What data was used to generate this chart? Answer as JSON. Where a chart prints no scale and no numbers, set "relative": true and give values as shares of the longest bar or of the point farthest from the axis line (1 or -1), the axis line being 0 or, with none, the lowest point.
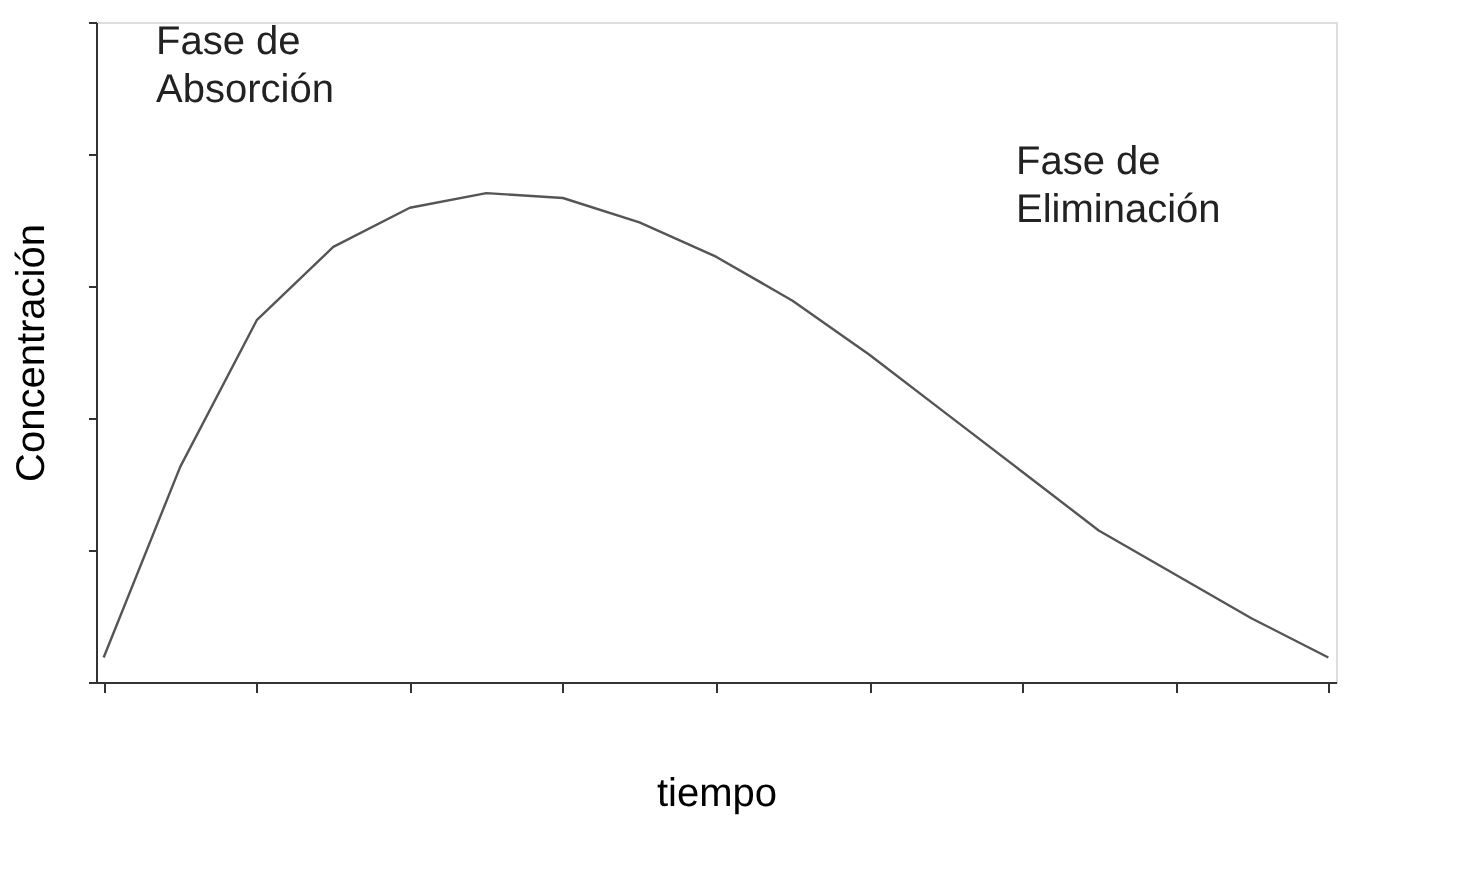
{
  "chart_data": {
    "type": "line",
    "relative": true,
    "xlabel": "tiempo",
    "ylabel": "Concentración",
    "categories": [
      null,
      null,
      null,
      null,
      null,
      null,
      null,
      null,
      null,
      null,
      null,
      null,
      null,
      null,
      null,
      null,
      null
    ],
    "series": [
      {
        "color": "#555555",
        "values": [
          0.05,
          0.44,
          0.74,
          0.89,
          0.97,
          1.0,
          0.99,
          0.94,
          0.87,
          0.78,
          0.67,
          0.55,
          0.43,
          0.31,
          0.22,
          0.13,
          0.05
        ]
      }
    ],
    "annotations": [
      "Fase de Absorción",
      "Fase de Eliminación"
    ],
    "grid": false,
    "marker": "none",
    "line_style": "solid"
  }
}
